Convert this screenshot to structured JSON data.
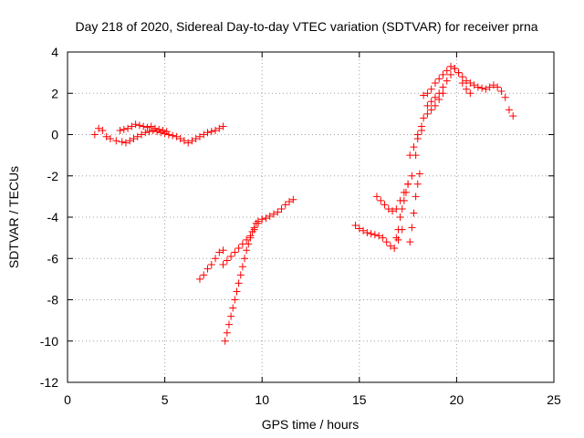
{
  "chart_data": {
    "type": "scatter",
    "title": "Day 218 of 2020, Sidereal Day-to-day VTEC variation (SDTVAR) for receiver prna",
    "xlabel": "GPS time / hours",
    "ylabel": "SDTVAR / TECUs",
    "xlim": [
      0,
      25
    ],
    "ylim": [
      -12,
      4
    ],
    "x_ticks": [
      0,
      5,
      10,
      15,
      20,
      25
    ],
    "y_ticks": [
      -12,
      -10,
      -8,
      -6,
      -4,
      -2,
      0,
      2,
      4
    ],
    "grid": true,
    "legend": "none",
    "marker": "plus",
    "color": "#ff0000",
    "segments": [
      {
        "x": [
          1.4,
          1.6,
          1.8,
          2.0,
          2.2,
          2.5,
          2.8,
          3.0,
          3.2,
          3.4,
          3.6,
          3.8,
          4.0,
          4.2,
          4.4,
          4.6,
          4.8,
          5.0,
          5.2,
          5.4,
          5.6,
          5.8,
          6.0,
          6.2,
          6.4,
          6.6,
          6.8,
          7.0,
          7.2,
          7.4,
          7.6,
          7.8,
          8.0
        ],
        "y": [
          0.0,
          0.3,
          0.2,
          -0.1,
          -0.2,
          -0.3,
          -0.35,
          -0.4,
          -0.3,
          -0.2,
          -0.1,
          0.0,
          0.1,
          0.15,
          0.2,
          0.15,
          0.1,
          0.05,
          0.0,
          -0.05,
          -0.1,
          -0.2,
          -0.3,
          -0.4,
          -0.3,
          -0.2,
          -0.1,
          0.0,
          0.1,
          0.15,
          0.2,
          0.3,
          0.4
        ]
      },
      {
        "x": [
          2.7,
          2.9,
          3.1,
          3.3,
          3.5,
          3.7,
          3.9,
          4.1,
          4.3,
          4.5,
          4.7,
          4.9,
          5.1
        ],
        "y": [
          0.2,
          0.25,
          0.3,
          0.4,
          0.5,
          0.45,
          0.4,
          0.35,
          0.4,
          0.3,
          0.25,
          0.2,
          0.15
        ]
      },
      {
        "x": [
          6.8,
          7.0,
          7.2,
          7.4,
          7.6,
          7.8,
          8.0
        ],
        "y": [
          -7.0,
          -6.8,
          -6.5,
          -6.3,
          -6.0,
          -5.7,
          -5.6
        ]
      },
      {
        "x": [
          8.1,
          8.2,
          8.3,
          8.4,
          8.5,
          8.6,
          8.7,
          8.8,
          8.9,
          9.0,
          9.1,
          9.2,
          9.3,
          9.4,
          9.5,
          9.6,
          9.7,
          9.8
        ],
        "y": [
          -10.0,
          -9.6,
          -9.2,
          -8.8,
          -8.4,
          -8.0,
          -7.6,
          -7.2,
          -6.8,
          -6.4,
          -6.0,
          -5.6,
          -5.3,
          -5.0,
          -4.7,
          -4.5,
          -4.3,
          -4.2
        ]
      },
      {
        "x": [
          8.0,
          8.2,
          8.4,
          8.6,
          8.8,
          9.0,
          9.2,
          9.4,
          9.6,
          9.8,
          10.0,
          10.2,
          10.4,
          10.6,
          10.8,
          11.0,
          11.2,
          11.4,
          11.6
        ],
        "y": [
          -6.3,
          -6.1,
          -5.9,
          -5.7,
          -5.5,
          -5.3,
          -5.1,
          -4.9,
          -4.6,
          -4.3,
          -4.1,
          -4.05,
          -3.95,
          -3.85,
          -3.75,
          -3.6,
          -3.4,
          -3.25,
          -3.15
        ]
      },
      {
        "x": [
          14.8,
          15.0,
          15.2,
          15.4,
          15.6,
          15.8,
          16.0,
          16.2,
          16.4,
          16.6,
          16.8,
          17.0,
          17.2
        ],
        "y": [
          -4.4,
          -4.55,
          -4.65,
          -4.75,
          -4.8,
          -4.85,
          -4.9,
          -5.0,
          -5.2,
          -5.4,
          -5.5,
          -5.1,
          -4.6
        ]
      },
      {
        "x": [
          15.9,
          16.1,
          16.3,
          16.5,
          16.7,
          16.9,
          17.1,
          17.3,
          17.5,
          17.7,
          17.9,
          18.0,
          18.2
        ],
        "y": [
          -3.0,
          -3.2,
          -3.4,
          -3.6,
          -3.7,
          -3.6,
          -3.2,
          -2.8,
          -2.4,
          -2.0,
          -1.0,
          0.0,
          0.4
        ]
      },
      {
        "x": [
          16.9,
          17.0,
          17.1,
          17.2,
          17.3,
          17.4,
          17.5
        ],
        "y": [
          -5.0,
          -4.6,
          -4.0,
          -3.6,
          -3.2,
          -2.8,
          -2.4
        ]
      },
      {
        "x": [
          17.6,
          17.7,
          17.8,
          17.9,
          18.0,
          18.1
        ],
        "y": [
          -5.2,
          -4.5,
          -3.8,
          -3.0,
          -2.4,
          -1.9
        ]
      },
      {
        "x": [
          17.6,
          17.8,
          18.0,
          18.2
        ],
        "y": [
          -1.0,
          -0.6,
          -0.2,
          0.2
        ]
      },
      {
        "x": [
          18.3,
          18.5,
          18.7,
          18.9,
          19.1,
          19.3,
          19.5,
          19.7,
          19.9,
          20.1,
          20.3,
          20.5,
          20.7,
          20.9,
          21.1,
          21.3,
          21.5,
          21.7,
          21.9,
          22.1,
          22.3,
          22.5,
          22.7,
          22.9
        ],
        "y": [
          1.9,
          2.0,
          2.2,
          2.5,
          2.7,
          2.9,
          3.1,
          3.3,
          3.2,
          3.0,
          2.8,
          2.6,
          2.5,
          2.4,
          2.3,
          2.25,
          2.2,
          2.3,
          2.4,
          2.3,
          2.1,
          1.8,
          1.2,
          0.9
        ]
      },
      {
        "x": [
          18.3,
          18.5,
          18.7,
          18.9,
          19.1,
          19.3
        ],
        "y": [
          0.8,
          1.0,
          1.2,
          1.4,
          1.7,
          2.0
        ]
      },
      {
        "x": [
          18.5,
          18.7,
          18.9,
          19.1,
          19.3,
          19.5,
          19.7,
          19.9,
          20.1,
          20.3,
          20.5,
          20.7
        ],
        "y": [
          1.4,
          1.6,
          1.8,
          2.0,
          2.3,
          2.6,
          2.9,
          3.2,
          3.0,
          2.5,
          2.2,
          2.0
        ]
      }
    ]
  }
}
